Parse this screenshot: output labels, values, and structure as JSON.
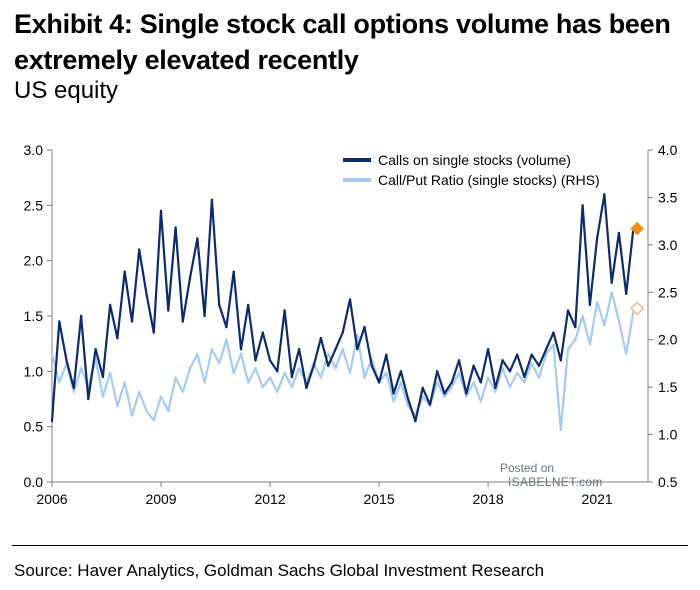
{
  "title": "Exhibit 4: Single stock call options volume has been extremely elevated recently",
  "subtitle": "US equity",
  "source": "Source: Haver Analytics, Goldman Sachs Global Investment Research",
  "watermark": {
    "line1": "Posted on",
    "line2": "ISABELNET.com"
  },
  "colors": {
    "series_calls": "#0d2b6b",
    "series_ratio": "#a6cbef",
    "marker_calls": "#f28a1e",
    "marker_ratio": "#f5b98a"
  },
  "chart_data": {
    "type": "line",
    "x_ticks": [
      "2006",
      "2009",
      "2012",
      "2015",
      "2018",
      "2021"
    ],
    "x_range": [
      2006,
      2022.4
    ],
    "y_left": {
      "range": [
        0.0,
        3.0
      ],
      "ticks": [
        "0.0",
        "0.5",
        "1.0",
        "1.5",
        "2.0",
        "2.5",
        "3.0"
      ]
    },
    "y_right": {
      "range": [
        0.5,
        4.0
      ],
      "ticks": [
        "0.5",
        "1.0",
        "1.5",
        "2.0",
        "2.5",
        "3.0",
        "3.5",
        "4.0"
      ]
    },
    "legend_position": "top-right",
    "series": [
      {
        "name": "Calls on single stocks (volume)",
        "axis": "left",
        "x": [
          2006.0,
          2006.2,
          2006.4,
          2006.6,
          2006.8,
          2007.0,
          2007.2,
          2007.4,
          2007.6,
          2007.8,
          2008.0,
          2008.2,
          2008.4,
          2008.6,
          2008.8,
          2009.0,
          2009.2,
          2009.4,
          2009.6,
          2009.8,
          2010.0,
          2010.2,
          2010.4,
          2010.6,
          2010.8,
          2011.0,
          2011.2,
          2011.4,
          2011.6,
          2011.8,
          2012.0,
          2012.2,
          2012.4,
          2012.6,
          2012.8,
          2013.0,
          2013.2,
          2013.4,
          2013.6,
          2013.8,
          2014.0,
          2014.2,
          2014.4,
          2014.6,
          2014.8,
          2015.0,
          2015.2,
          2015.4,
          2015.6,
          2015.8,
          2016.0,
          2016.2,
          2016.4,
          2016.6,
          2016.8,
          2017.0,
          2017.2,
          2017.4,
          2017.6,
          2017.8,
          2018.0,
          2018.2,
          2018.4,
          2018.6,
          2018.8,
          2019.0,
          2019.2,
          2019.4,
          2019.6,
          2019.8,
          2020.0,
          2020.2,
          2020.4,
          2020.6,
          2020.8,
          2021.0,
          2021.2,
          2021.4,
          2021.6,
          2021.8,
          2022.0
        ],
        "values": [
          0.55,
          1.45,
          1.1,
          0.85,
          1.5,
          0.75,
          1.2,
          0.95,
          1.6,
          1.3,
          1.9,
          1.45,
          2.1,
          1.7,
          1.35,
          2.45,
          1.55,
          2.3,
          1.45,
          1.85,
          2.2,
          1.5,
          2.55,
          1.6,
          1.4,
          1.9,
          1.2,
          1.6,
          1.1,
          1.35,
          1.1,
          1.0,
          1.55,
          0.95,
          1.2,
          0.85,
          1.05,
          1.3,
          1.05,
          1.2,
          1.35,
          1.65,
          1.2,
          1.4,
          1.05,
          0.9,
          1.15,
          0.8,
          1.0,
          0.75,
          0.55,
          0.85,
          0.7,
          1.0,
          0.8,
          0.9,
          1.1,
          0.8,
          1.05,
          0.9,
          1.2,
          0.85,
          1.1,
          1.0,
          1.15,
          0.95,
          1.15,
          1.05,
          1.2,
          1.35,
          1.1,
          1.55,
          1.4,
          2.5,
          1.6,
          2.2,
          2.6,
          1.8,
          2.25,
          1.7,
          2.3
        ]
      },
      {
        "name": "Call/Put Ratio (single stocks) (RHS)",
        "axis": "right",
        "x": [
          2006.0,
          2006.2,
          2006.4,
          2006.6,
          2006.8,
          2007.0,
          2007.2,
          2007.4,
          2007.6,
          2007.8,
          2008.0,
          2008.2,
          2008.4,
          2008.6,
          2008.8,
          2009.0,
          2009.2,
          2009.4,
          2009.6,
          2009.8,
          2010.0,
          2010.2,
          2010.4,
          2010.6,
          2010.8,
          2011.0,
          2011.2,
          2011.4,
          2011.6,
          2011.8,
          2012.0,
          2012.2,
          2012.4,
          2012.6,
          2012.8,
          2013.0,
          2013.2,
          2013.4,
          2013.6,
          2013.8,
          2014.0,
          2014.2,
          2014.4,
          2014.6,
          2014.8,
          2015.0,
          2015.2,
          2015.4,
          2015.6,
          2015.8,
          2016.0,
          2016.2,
          2016.4,
          2016.6,
          2016.8,
          2017.0,
          2017.2,
          2017.4,
          2017.6,
          2017.8,
          2018.0,
          2018.2,
          2018.4,
          2018.6,
          2018.8,
          2019.0,
          2019.2,
          2019.4,
          2019.6,
          2019.8,
          2020.0,
          2020.2,
          2020.4,
          2020.6,
          2020.8,
          2021.0,
          2021.2,
          2021.4,
          2021.6,
          2021.8,
          2022.0
        ],
        "values": [
          1.85,
          1.55,
          1.75,
          1.45,
          1.7,
          1.5,
          1.8,
          1.4,
          1.65,
          1.3,
          1.55,
          1.2,
          1.45,
          1.25,
          1.15,
          1.4,
          1.25,
          1.6,
          1.45,
          1.7,
          1.85,
          1.55,
          1.9,
          1.75,
          2.0,
          1.65,
          1.85,
          1.55,
          1.7,
          1.5,
          1.6,
          1.45,
          1.65,
          1.5,
          1.7,
          1.55,
          1.75,
          1.6,
          1.85,
          1.7,
          1.9,
          1.65,
          2.05,
          1.6,
          1.8,
          1.55,
          1.65,
          1.35,
          1.55,
          1.3,
          1.2,
          1.4,
          1.3,
          1.55,
          1.4,
          1.5,
          1.65,
          1.4,
          1.55,
          1.35,
          1.6,
          1.45,
          1.7,
          1.5,
          1.65,
          1.55,
          1.75,
          1.6,
          1.85,
          1.95,
          1.05,
          1.9,
          2.0,
          2.25,
          1.95,
          2.4,
          2.15,
          2.5,
          2.2,
          1.85,
          2.3
        ]
      }
    ],
    "markers": [
      {
        "series": "Calls on single stocks (volume)",
        "x": 2022.1,
        "value": 2.29
      },
      {
        "series": "Call/Put Ratio (single stocks) (RHS)",
        "x": 2022.1,
        "value": 2.33
      }
    ]
  }
}
